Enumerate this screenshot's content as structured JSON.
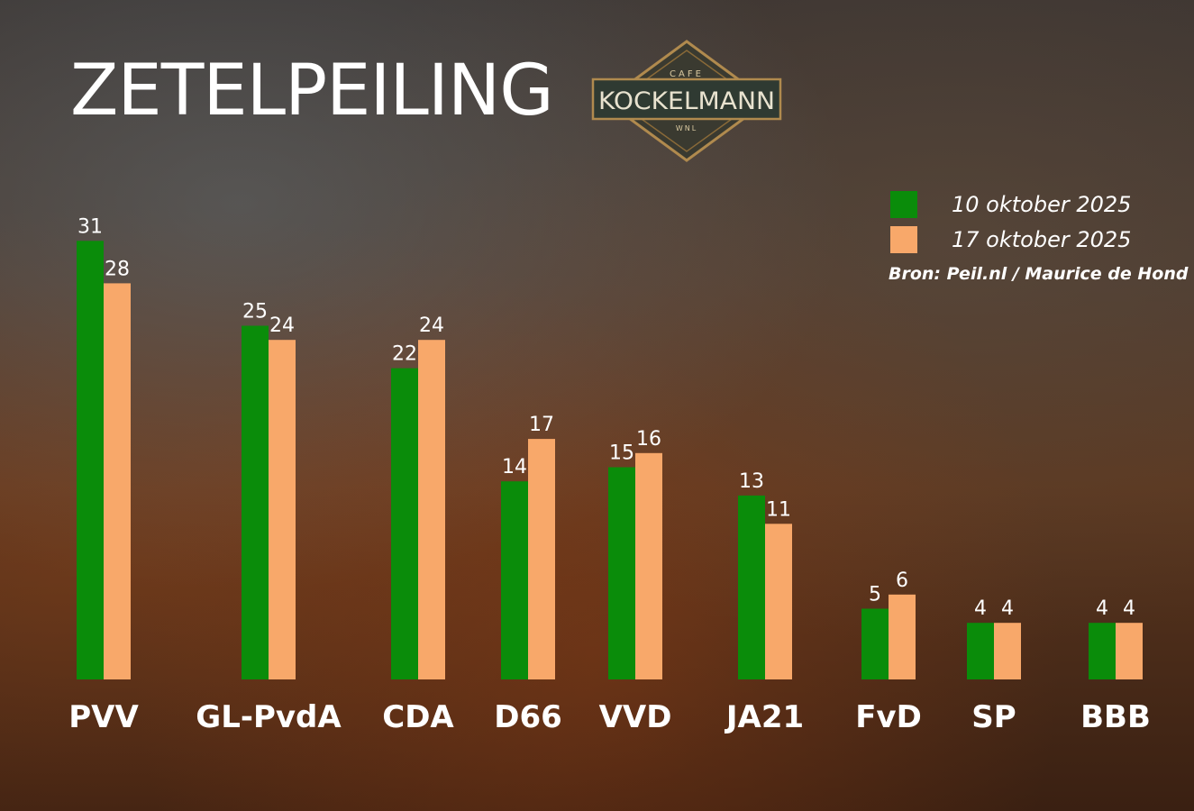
{
  "title": "ZETELPEILING",
  "logo": {
    "top_text": "CAFE",
    "name": "KOCKELMANN",
    "bottom_text": "WNL"
  },
  "source": "Bron: Peil.nl / Maurice de Hond",
  "colors": {
    "series1": "#0a8c0a",
    "series2": "#f8a86a",
    "text": "#ffffff"
  },
  "chart_data": {
    "type": "bar",
    "title": "ZETELPEILING",
    "categories": [
      "PVV",
      "GL-PvdA",
      "CDA",
      "D66",
      "VVD",
      "JA21",
      "FvD",
      "SP",
      "BBB"
    ],
    "series": [
      {
        "name": "10 oktober 2025",
        "values": [
          31,
          25,
          22,
          14,
          15,
          13,
          5,
          4,
          4
        ]
      },
      {
        "name": "17 oktober 2025",
        "values": [
          28,
          24,
          24,
          17,
          16,
          11,
          6,
          4,
          4
        ]
      }
    ],
    "legend": "top-right",
    "grid": false,
    "xlabel": "",
    "ylabel": ""
  }
}
